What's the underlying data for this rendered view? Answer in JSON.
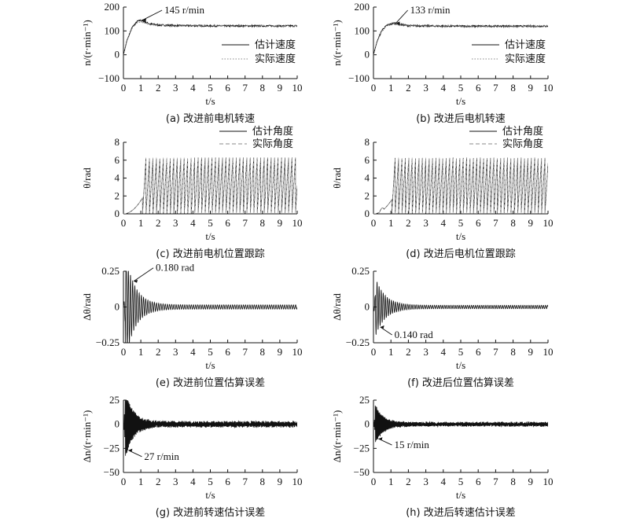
{
  "page": {
    "background": "#ffffff",
    "ink": "#111111"
  },
  "panels": [
    {
      "id": "a",
      "caption": "(a) 改进前电机转速",
      "ylabel": "n/(r·min⁻¹)",
      "xlabel": "t/s",
      "annotation": "145 r/min",
      "legend": [
        "估计速度",
        "实际速度"
      ]
    },
    {
      "id": "b",
      "caption": "(b) 改进后电机转速",
      "ylabel": "n/(r·min⁻¹)",
      "xlabel": "t/s",
      "annotation": "133 r/min",
      "legend": [
        "估计速度",
        "实际速度"
      ]
    },
    {
      "id": "c",
      "caption": "(c) 改进前电机位置跟踪",
      "ylabel": "θ/rad",
      "xlabel": "t/s",
      "annotation": "",
      "legend": [
        "估计角度",
        "实际角度"
      ]
    },
    {
      "id": "d",
      "caption": "(d) 改进后电机位置跟踪",
      "ylabel": "θ/rad",
      "xlabel": "t/s",
      "annotation": "",
      "legend": [
        "估计角度",
        "实际角度"
      ]
    },
    {
      "id": "e",
      "caption": "(e) 改进前位置估算误差",
      "ylabel": "Δθ/rad",
      "xlabel": "t/s",
      "annotation": "0.180 rad",
      "legend": []
    },
    {
      "id": "f",
      "caption": "(f) 改进后位置估算误差",
      "ylabel": "Δθ/rad",
      "xlabel": "t/s",
      "annotation": "0.140 rad",
      "legend": []
    },
    {
      "id": "g",
      "caption": "(g) 改进前转速估计误差",
      "ylabel": "Δn/(r·min⁻¹)",
      "xlabel": "t/s",
      "annotation": "27 r/min",
      "legend": []
    },
    {
      "id": "h",
      "caption": "(h) 改进后转速估计误差",
      "ylabel": "Δn/(r·min⁻¹)",
      "xlabel": "t/s",
      "annotation": "15 r/min",
      "legend": []
    }
  ],
  "chart_data": [
    {
      "panel": "a",
      "type": "line",
      "title": "(a) 改进前电机转速",
      "xlabel": "t/s",
      "ylabel": "n/(r·min⁻¹)",
      "xlim": [
        0,
        10
      ],
      "ylim": [
        -100,
        200
      ],
      "xticks": [
        "0",
        "1",
        "2",
        "3",
        "4",
        "5",
        "6",
        "7",
        "8",
        "9",
        "10"
      ],
      "yticks": [
        "−100",
        "0",
        "100",
        "200"
      ],
      "series": [
        {
          "name": "估计速度",
          "style": "solid",
          "x": [
            0,
            0.2,
            0.5,
            0.8,
            1.0,
            1.5,
            2,
            3,
            4,
            5,
            6,
            7,
            8,
            9,
            10
          ],
          "y": [
            0,
            60,
            115,
            140,
            145,
            130,
            125,
            122,
            122,
            121,
            121,
            121,
            121,
            121,
            121
          ]
        },
        {
          "name": "实际速度",
          "style": "dotted",
          "x": [
            0,
            0.2,
            0.5,
            0.8,
            1.0,
            1.5,
            2,
            3,
            4,
            5,
            6,
            7,
            8,
            9,
            10
          ],
          "y": [
            0,
            58,
            112,
            135,
            140,
            128,
            124,
            122,
            122,
            121,
            121,
            121,
            121,
            121,
            121
          ]
        }
      ],
      "annotation": {
        "text": "145 r/min",
        "x": 1.0,
        "y": 145
      },
      "legend_position": "right"
    },
    {
      "panel": "b",
      "type": "line",
      "title": "(b) 改进后电机转速",
      "xlabel": "t/s",
      "ylabel": "n/(r·min⁻¹)",
      "xlim": [
        0,
        10
      ],
      "ylim": [
        -100,
        200
      ],
      "xticks": [
        "0",
        "1",
        "2",
        "3",
        "4",
        "5",
        "6",
        "7",
        "8",
        "9",
        "10"
      ],
      "yticks": [
        "−100",
        "0",
        "100",
        "200"
      ],
      "series": [
        {
          "name": "估计速度",
          "style": "solid",
          "x": [
            0,
            0.2,
            0.5,
            0.8,
            1.2,
            1.5,
            2,
            3,
            4,
            5,
            6,
            7,
            8,
            9,
            10
          ],
          "y": [
            0,
            55,
            105,
            125,
            133,
            127,
            122,
            121,
            120,
            120,
            120,
            120,
            120,
            120,
            120
          ]
        },
        {
          "name": "实际速度",
          "style": "dotted",
          "x": [
            0,
            0.2,
            0.5,
            0.8,
            1.2,
            1.5,
            2,
            3,
            4,
            5,
            6,
            7,
            8,
            9,
            10
          ],
          "y": [
            0,
            53,
            102,
            122,
            130,
            126,
            122,
            121,
            120,
            120,
            120,
            120,
            120,
            120,
            120
          ]
        }
      ],
      "annotation": {
        "text": "133 r/min",
        "x": 1.2,
        "y": 133
      },
      "legend_position": "right"
    },
    {
      "panel": "c",
      "type": "line",
      "title": "(c) 改进前电机位置跟踪",
      "xlabel": "t/s",
      "ylabel": "θ/rad",
      "xlim": [
        0,
        10
      ],
      "ylim": [
        0,
        8
      ],
      "xticks": [
        "0",
        "1",
        "2",
        "3",
        "4",
        "5",
        "6",
        "7",
        "8",
        "9",
        "10"
      ],
      "yticks": [
        "0",
        "2",
        "4",
        "6",
        "8"
      ],
      "series": [
        {
          "name": "估计角度",
          "style": "solid",
          "description": "sawtooth 0–6.28 rad from ~1.1 s"
        },
        {
          "name": "实际角度",
          "style": "dashed",
          "description": "sawtooth 0–6.28 rad from ~1.1 s"
        }
      ],
      "legend_position": "top-right"
    },
    {
      "panel": "d",
      "type": "line",
      "title": "(d) 改进后电机位置跟踪",
      "xlabel": "t/s",
      "ylabel": "θ/rad",
      "xlim": [
        0,
        10
      ],
      "ylim": [
        0,
        8
      ],
      "xticks": [
        "0",
        "1",
        "2",
        "3",
        "4",
        "5",
        "6",
        "7",
        "8",
        "9",
        "10"
      ],
      "yticks": [
        "0",
        "2",
        "4",
        "6",
        "8"
      ],
      "series": [
        {
          "name": "估计角度",
          "style": "solid"
        },
        {
          "name": "实际角度",
          "style": "dashed"
        }
      ],
      "legend_position": "top-right"
    },
    {
      "panel": "e",
      "type": "line",
      "title": "(e) 改进前位置估算误差",
      "xlabel": "t/s",
      "ylabel": "Δθ/rad",
      "xlim": [
        0,
        10
      ],
      "ylim": [
        -0.25,
        0.25
      ],
      "xticks": [
        "0",
        "1",
        "2",
        "3",
        "4",
        "5",
        "6",
        "7",
        "8",
        "9",
        "10"
      ],
      "yticks": [
        "−0.25",
        "0",
        "0.25"
      ],
      "series": [
        {
          "name": "",
          "peak": 0.18,
          "peak_t": 0.5,
          "steady_amplitude": 0.015
        }
      ],
      "annotation": {
        "text": "0.180 rad",
        "x": 0.5,
        "y": 0.18
      }
    },
    {
      "panel": "f",
      "type": "line",
      "title": "(f) 改进后位置估算误差",
      "xlabel": "t/s",
      "ylabel": "Δθ/rad",
      "xlim": [
        0,
        10
      ],
      "ylim": [
        -0.25,
        0.25
      ],
      "xticks": [
        "0",
        "1",
        "2",
        "3",
        "4",
        "5",
        "6",
        "7",
        "8",
        "9",
        "10"
      ],
      "yticks": [
        "−0.25",
        "0",
        "0.25"
      ],
      "series": [
        {
          "name": "",
          "peak": -0.14,
          "peak_t": 0.3,
          "steady_amplitude": 0.012
        }
      ],
      "annotation": {
        "text": "0.140 rad",
        "x": 0.3,
        "y": -0.14
      }
    },
    {
      "panel": "g",
      "type": "line",
      "title": "(g) 改进前转速估计误差",
      "xlabel": "t/s",
      "ylabel": "Δn/(r·min⁻¹)",
      "xlim": [
        0,
        10
      ],
      "ylim": [
        -50,
        25
      ],
      "xticks": [
        "0",
        "1",
        "2",
        "3",
        "4",
        "5",
        "6",
        "7",
        "8",
        "9",
        "10"
      ],
      "yticks": [
        "−50",
        "−25",
        "0",
        "25"
      ],
      "series": [
        {
          "name": "",
          "peak": -27,
          "peak_t": 0.2,
          "steady_amplitude": 2
        }
      ],
      "annotation": {
        "text": "27 r/min",
        "x": 0.2,
        "y": -27
      }
    },
    {
      "panel": "h",
      "type": "line",
      "title": "(h) 改进后转速估计误差",
      "xlabel": "t/s",
      "ylabel": "Δn/(r·min⁻¹)",
      "xlim": [
        0,
        10
      ],
      "ylim": [
        -50,
        25
      ],
      "xticks": [
        "0",
        "1",
        "2",
        "3",
        "4",
        "5",
        "6",
        "7",
        "8",
        "9",
        "10"
      ],
      "yticks": [
        "−50",
        "−25",
        "0",
        "25"
      ],
      "series": [
        {
          "name": "",
          "peak": -15,
          "peak_t": 0.2,
          "steady_amplitude": 1.5
        }
      ],
      "annotation": {
        "text": "15 r/min",
        "x": 0.2,
        "y": -15
      }
    }
  ]
}
